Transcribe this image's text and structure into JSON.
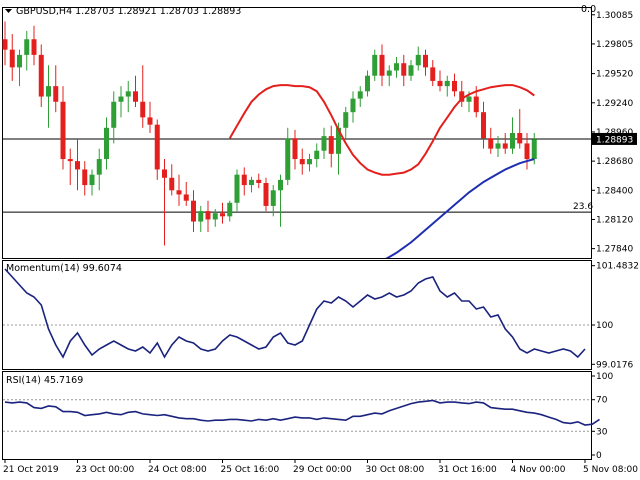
{
  "header": {
    "symbol_info": "GBPUSD,H4  1.28703 1.28921 1.28703 1.28893",
    "top_right_value": "0.0"
  },
  "colors": {
    "bull": "#2e9e35",
    "bear": "#e3201d",
    "ma_fast": "#e3201d",
    "ma_slow": "#1f2fb0",
    "indicator_line": "#1a237e",
    "level_line": "#000000",
    "dotted_grid": "#999999"
  },
  "chart_data": [
    {
      "type": "candlestick",
      "title": "GBPUSD,H4  1.28703 1.28921 1.28703 1.28893",
      "ylim": [
        1.2775,
        1.3015
      ],
      "y_ticks": [
        "1.30085",
        "1.29805",
        "1.29520",
        "1.29240",
        "1.28960",
        "1.28893",
        "1.28680",
        "1.28400",
        "1.28120",
        "1.27840"
      ],
      "y_tick_values": [
        1.30085,
        1.29805,
        1.2952,
        1.2924,
        1.2896,
        1.28893,
        1.2868,
        1.284,
        1.2812,
        1.2784
      ],
      "current_price": "1.28893",
      "current_price_value": 1.28893,
      "level_line": {
        "label": "23.6",
        "value": 1.2819
      },
      "x_labels": [
        "21 Oct 2019",
        "23 Oct 00:00",
        "24 Oct 08:00",
        "25 Oct 16:00",
        "29 Oct 00:00",
        "30 Oct 08:00",
        "31 Oct 16:00",
        "4 Nov 00:00",
        "5 Nov 08:00"
      ],
      "x_label_index": [
        0,
        10,
        20,
        30,
        40,
        50,
        60,
        70,
        80
      ],
      "ohlc": [
        [
          1.2985,
          1.3002,
          1.296,
          1.2975
        ],
        [
          1.2975,
          1.299,
          1.2945,
          1.2958
        ],
        [
          1.2958,
          1.2975,
          1.294,
          1.297
        ],
        [
          1.297,
          1.2993,
          1.2955,
          1.2985
        ],
        [
          1.2985,
          1.2998,
          1.296,
          1.297
        ],
        [
          1.297,
          1.298,
          1.292,
          1.293
        ],
        [
          1.293,
          1.296,
          1.29,
          1.294
        ],
        [
          1.294,
          1.296,
          1.2915,
          1.2925
        ],
        [
          1.2925,
          1.294,
          1.286,
          1.287
        ],
        [
          1.287,
          1.288,
          1.2845,
          1.2868
        ],
        [
          1.2868,
          1.289,
          1.284,
          1.286
        ],
        [
          1.286,
          1.2868,
          1.2835,
          1.2845
        ],
        [
          1.2845,
          1.286,
          1.2835,
          1.2855
        ],
        [
          1.2855,
          1.288,
          1.284,
          1.287
        ],
        [
          1.287,
          1.291,
          1.286,
          1.29
        ],
        [
          1.29,
          1.2935,
          1.2885,
          1.2925
        ],
        [
          1.2925,
          1.294,
          1.291,
          1.293
        ],
        [
          1.293,
          1.2945,
          1.2915,
          1.2935
        ],
        [
          1.2935,
          1.295,
          1.292,
          1.2925
        ],
        [
          1.2925,
          1.296,
          1.29,
          1.291
        ],
        [
          1.291,
          1.2925,
          1.2895,
          1.2903
        ],
        [
          1.2903,
          1.2908,
          1.285,
          1.286
        ],
        [
          1.286,
          1.287,
          1.2787,
          1.2852
        ],
        [
          1.2852,
          1.2865,
          1.2835,
          1.284
        ],
        [
          1.284,
          1.2855,
          1.2825,
          1.2836
        ],
        [
          1.2836,
          1.2848,
          1.2825,
          1.283
        ],
        [
          1.283,
          1.284,
          1.28,
          1.281
        ],
        [
          1.281,
          1.2825,
          1.28,
          1.282
        ],
        [
          1.282,
          1.283,
          1.28,
          1.2812
        ],
        [
          1.2812,
          1.2822,
          1.2805,
          1.2818
        ],
        [
          1.2818,
          1.2828,
          1.2808,
          1.2815
        ],
        [
          1.2815,
          1.283,
          1.281,
          1.2828
        ],
        [
          1.2828,
          1.286,
          1.282,
          1.2855
        ],
        [
          1.2855,
          1.2862,
          1.2835,
          1.2845
        ],
        [
          1.2845,
          1.2853,
          1.2838,
          1.285
        ],
        [
          1.285,
          1.2856,
          1.2842,
          1.2847
        ],
        [
          1.2847,
          1.2852,
          1.282,
          1.2825
        ],
        [
          1.2825,
          1.2845,
          1.2815,
          1.284
        ],
        [
          1.284,
          1.2855,
          1.2805,
          1.285
        ],
        [
          1.285,
          1.29,
          1.2845,
          1.289
        ],
        [
          1.289,
          1.2898,
          1.286,
          1.287
        ],
        [
          1.287,
          1.288,
          1.2855,
          1.2865
        ],
        [
          1.2865,
          1.2875,
          1.2858,
          1.287
        ],
        [
          1.287,
          1.2885,
          1.2862,
          1.2878
        ],
        [
          1.2878,
          1.29,
          1.287,
          1.2892
        ],
        [
          1.2892,
          1.2902,
          1.2862,
          1.2875
        ],
        [
          1.2875,
          1.2905,
          1.2855,
          1.29
        ],
        [
          1.29,
          1.292,
          1.289,
          1.2915
        ],
        [
          1.2915,
          1.2935,
          1.2905,
          1.2928
        ],
        [
          1.2928,
          1.294,
          1.292,
          1.2935
        ],
        [
          1.2935,
          1.2955,
          1.293,
          1.295
        ],
        [
          1.295,
          1.2975,
          1.2945,
          1.297
        ],
        [
          1.297,
          1.298,
          1.294,
          1.295
        ],
        [
          1.295,
          1.296,
          1.294,
          1.2955
        ],
        [
          1.2955,
          1.2968,
          1.2948,
          1.2962
        ],
        [
          1.2962,
          1.297,
          1.294,
          1.295
        ],
        [
          1.295,
          1.2965,
          1.2945,
          1.296
        ],
        [
          1.296,
          1.2978,
          1.2955,
          1.297
        ],
        [
          1.297,
          1.2975,
          1.295,
          1.2958
        ],
        [
          1.2958,
          1.2965,
          1.294,
          1.2945
        ],
        [
          1.2945,
          1.2955,
          1.2935,
          1.294
        ],
        [
          1.294,
          1.295,
          1.293,
          1.2945
        ],
        [
          1.2945,
          1.2952,
          1.293,
          1.2935
        ],
        [
          1.2935,
          1.2945,
          1.292,
          1.2925
        ],
        [
          1.2925,
          1.2935,
          1.2915,
          1.293
        ],
        [
          1.293,
          1.294,
          1.291,
          1.2915
        ],
        [
          1.2915,
          1.2925,
          1.288,
          1.289
        ],
        [
          1.289,
          1.29,
          1.2875,
          1.288
        ],
        [
          1.288,
          1.2892,
          1.2872,
          1.2885
        ],
        [
          1.2885,
          1.2895,
          1.2875,
          1.288
        ],
        [
          1.288,
          1.291,
          1.2875,
          1.2895
        ],
        [
          1.2895,
          1.2918,
          1.288,
          1.2885
        ],
        [
          1.2885,
          1.2895,
          1.286,
          1.287
        ],
        [
          1.287,
          1.2895,
          1.2865,
          1.2889
        ]
      ],
      "ma_fast": [
        1.289,
        1.2902,
        1.2914,
        1.2925,
        1.2932,
        1.2937,
        1.294,
        1.2941,
        1.2941,
        1.294,
        1.294,
        1.2939,
        1.2935,
        1.2925,
        1.2912,
        1.2898,
        1.2885,
        1.2874,
        1.2866,
        1.286,
        1.2857,
        1.2855,
        1.2855,
        1.2856,
        1.2857,
        1.286,
        1.2865,
        1.2875,
        1.2887,
        1.29,
        1.291,
        1.292,
        1.2928,
        1.2932,
        1.2935,
        1.2937,
        1.2939,
        1.294,
        1.2941,
        1.2941,
        1.2939,
        1.2936,
        1.2931
      ],
      "ma_fast_start": 31,
      "ma_slow": [
        1.2772,
        1.2776,
        1.278,
        1.2785,
        1.279,
        1.2796,
        1.2802,
        1.2808,
        1.2814,
        1.282,
        1.2826,
        1.2832,
        1.2838,
        1.2843,
        1.2848,
        1.2852,
        1.2856,
        1.286,
        1.2863,
        1.2866,
        1.2868,
        1.287
      ],
      "ma_slow_start": 52
    },
    {
      "type": "line",
      "title": "Momentum(14) 99.6074",
      "ylim": [
        98.9,
        101.6
      ],
      "y_ticks": [
        "101.4832",
        "100",
        "99.0176"
      ],
      "y_tick_values": [
        101.4832,
        100,
        99.0176
      ],
      "reference_level": 100,
      "series": [
        {
          "name": "Momentum(14)",
          "values": [
            101.4,
            101.2,
            101.0,
            100.8,
            100.7,
            100.5,
            99.9,
            99.5,
            99.2,
            99.6,
            99.8,
            99.5,
            99.25,
            99.4,
            99.5,
            99.6,
            99.5,
            99.4,
            99.35,
            99.45,
            99.3,
            99.55,
            99.2,
            99.5,
            99.7,
            99.6,
            99.55,
            99.4,
            99.35,
            99.4,
            99.6,
            99.75,
            99.7,
            99.6,
            99.5,
            99.4,
            99.45,
            99.7,
            99.8,
            99.55,
            99.5,
            99.6,
            100.0,
            100.4,
            100.6,
            100.55,
            100.7,
            100.6,
            100.45,
            100.6,
            100.75,
            100.65,
            100.7,
            100.8,
            100.7,
            100.75,
            100.85,
            101.05,
            101.15,
            101.2,
            100.85,
            100.7,
            100.8,
            100.6,
            100.6,
            100.4,
            100.45,
            100.2,
            100.25,
            99.9,
            99.7,
            99.4,
            99.3,
            99.4,
            99.35,
            99.3,
            99.35,
            99.4,
            99.35,
            99.2,
            99.4
          ]
        }
      ],
      "current_value": 99.6074
    },
    {
      "type": "line",
      "title": "RSI(14) 45.7169",
      "ylim": [
        0,
        100
      ],
      "y_ticks": [
        "100",
        "70",
        "30",
        "0"
      ],
      "y_tick_values": [
        100,
        70,
        30,
        0
      ],
      "dotted_levels": [
        70,
        30
      ],
      "series": [
        {
          "name": "RSI(14)",
          "values": [
            67,
            66,
            67,
            66,
            60,
            59,
            62,
            61,
            55,
            55,
            54,
            50,
            51,
            52,
            54,
            52,
            51,
            54,
            55,
            52,
            51,
            50,
            51,
            49,
            47,
            46,
            46,
            44,
            43,
            44,
            44,
            45,
            45,
            44,
            43,
            45,
            44,
            46,
            44,
            46,
            48,
            47,
            47,
            45,
            47,
            46,
            45,
            44,
            49,
            49,
            51,
            53,
            52,
            56,
            59,
            62,
            65,
            67,
            68,
            69,
            66,
            67,
            67,
            66,
            65,
            67,
            66,
            60,
            59,
            58,
            58,
            56,
            54,
            53,
            51,
            48,
            45,
            41,
            40,
            42,
            38,
            39,
            45
          ]
        }
      ],
      "current_value": 45.7169
    }
  ]
}
